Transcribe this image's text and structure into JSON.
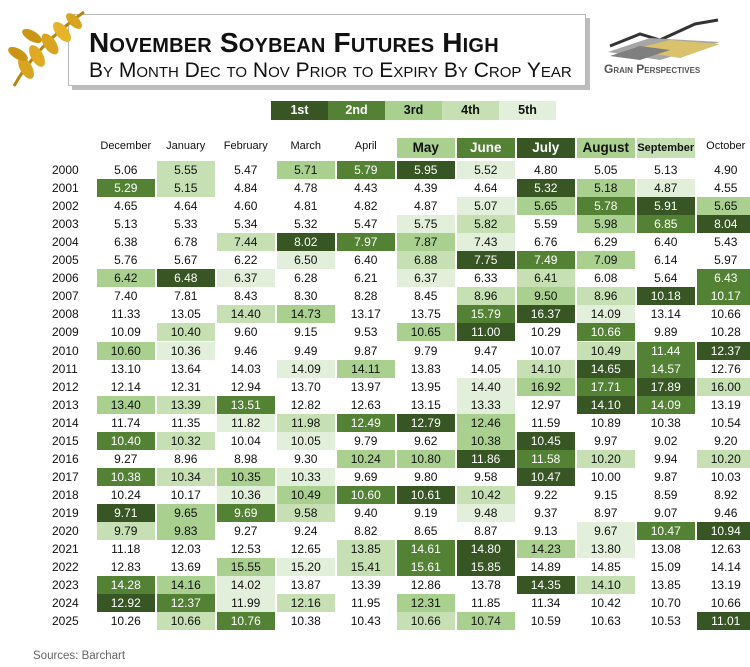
{
  "title": "November Soybean Futures High",
  "subtitle": "By Month Dec to Nov Prior to Expiry By Crop Year",
  "brand": "Grain Perspectives",
  "source": "Sources: Barchart",
  "rank_colors": {
    "1": "#375623",
    "2": "#548235",
    "3": "#a9d08e",
    "4": "#c6e0b4",
    "5": "#e2efda"
  },
  "legend": [
    {
      "label": "1st",
      "rank": 1
    },
    {
      "label": "2nd",
      "rank": 2
    },
    {
      "label": "3rd",
      "rank": 3
    },
    {
      "label": "4th",
      "rank": 4
    },
    {
      "label": "5th",
      "rank": 5
    }
  ],
  "chart_data": {
    "type": "table",
    "columns": [
      "December",
      "January",
      "February",
      "March",
      "April",
      "May",
      "June",
      "July",
      "August",
      "September",
      "October"
    ],
    "highlighted_columns": [
      {
        "column": "May",
        "rank": 3
      },
      {
        "column": "June",
        "rank": 2
      },
      {
        "column": "July",
        "rank": 1
      },
      {
        "column": "August",
        "rank": 3
      },
      {
        "column": "September",
        "rank": 4
      }
    ],
    "rows": [
      {
        "year": "2000",
        "values": [
          "5.06",
          "5.55",
          "5.47",
          "5.71",
          "5.79",
          "5.95",
          "5.52",
          "4.80",
          "5.05",
          "5.13",
          "4.90"
        ],
        "ranks": [
          0,
          4,
          0,
          3,
          2,
          1,
          5,
          0,
          0,
          0,
          0
        ]
      },
      {
        "year": "2001",
        "values": [
          "5.29",
          "5.15",
          "4.84",
          "4.78",
          "4.43",
          "4.39",
          "4.64",
          "5.32",
          "5.18",
          "4.87",
          "4.55"
        ],
        "ranks": [
          2,
          4,
          0,
          0,
          0,
          0,
          0,
          1,
          3,
          5,
          0
        ]
      },
      {
        "year": "2002",
        "values": [
          "4.65",
          "4.64",
          "4.60",
          "4.81",
          "4.82",
          "4.87",
          "5.07",
          "5.65",
          "5.78",
          "5.91",
          "5.65"
        ],
        "ranks": [
          0,
          0,
          0,
          0,
          0,
          0,
          5,
          3,
          2,
          1,
          3
        ]
      },
      {
        "year": "2003",
        "values": [
          "5.13",
          "5.33",
          "5.34",
          "5.32",
          "5.47",
          "5.75",
          "5.82",
          "5.59",
          "5.98",
          "6.85",
          "8.04"
        ],
        "ranks": [
          0,
          0,
          0,
          0,
          0,
          5,
          4,
          0,
          3,
          2,
          1
        ]
      },
      {
        "year": "2004",
        "values": [
          "6.38",
          "6.78",
          "7.44",
          "8.02",
          "7.97",
          "7.87",
          "7.43",
          "6.76",
          "6.29",
          "6.40",
          "5.43"
        ],
        "ranks": [
          0,
          0,
          4,
          1,
          2,
          3,
          5,
          0,
          0,
          0,
          0
        ]
      },
      {
        "year": "2005",
        "values": [
          "5.76",
          "5.67",
          "6.22",
          "6.50",
          "6.40",
          "6.88",
          "7.75",
          "7.49",
          "7.09",
          "6.14",
          "5.97"
        ],
        "ranks": [
          0,
          0,
          0,
          5,
          0,
          4,
          1,
          2,
          3,
          0,
          0
        ]
      },
      {
        "year": "2006",
        "values": [
          "6.42",
          "6.48",
          "6.37",
          "6.28",
          "6.21",
          "6.37",
          "6.33",
          "6.41",
          "6.08",
          "5.64",
          "6.43"
        ],
        "ranks": [
          3,
          1,
          5,
          0,
          0,
          5,
          0,
          4,
          0,
          0,
          2
        ]
      },
      {
        "year": "2007",
        "values": [
          "7.40",
          "7.81",
          "8.43",
          "8.30",
          "8.28",
          "8.45",
          "8.96",
          "9.50",
          "8.96",
          "10.18",
          "10.17"
        ],
        "ranks": [
          0,
          0,
          0,
          0,
          0,
          0,
          4,
          3,
          4,
          1,
          2
        ]
      },
      {
        "year": "2008",
        "values": [
          "11.33",
          "13.05",
          "14.40",
          "14.73",
          "13.17",
          "13.75",
          "15.79",
          "16.37",
          "14.09",
          "13.14",
          "10.66"
        ],
        "ranks": [
          0,
          0,
          4,
          3,
          0,
          0,
          2,
          1,
          5,
          0,
          0
        ]
      },
      {
        "year": "2009",
        "values": [
          "10.09",
          "10.40",
          "9.60",
          "9.15",
          "9.53",
          "10.65",
          "11.00",
          "10.29",
          "10.66",
          "9.89",
          "10.28"
        ],
        "ranks": [
          0,
          4,
          0,
          0,
          0,
          3,
          1,
          0,
          2,
          0,
          0
        ]
      },
      {
        "year": "2010",
        "values": [
          "10.60",
          "10.36",
          "9.46",
          "9.49",
          "9.87",
          "9.79",
          "9.47",
          "10.07",
          "10.49",
          "11.44",
          "12.37"
        ],
        "ranks": [
          3,
          5,
          0,
          0,
          0,
          0,
          0,
          0,
          4,
          2,
          1
        ]
      },
      {
        "year": "2011",
        "values": [
          "13.10",
          "13.64",
          "14.03",
          "14.09",
          "14.11",
          "13.83",
          "14.05",
          "14.10",
          "14.65",
          "14.57",
          "12.76"
        ],
        "ranks": [
          0,
          0,
          0,
          5,
          3,
          0,
          0,
          4,
          1,
          2,
          0
        ]
      },
      {
        "year": "2012",
        "values": [
          "12.14",
          "12.31",
          "12.94",
          "13.70",
          "13.97",
          "13.95",
          "14.40",
          "16.92",
          "17.71",
          "17.89",
          "16.00"
        ],
        "ranks": [
          0,
          0,
          0,
          0,
          0,
          0,
          5,
          3,
          2,
          1,
          4
        ]
      },
      {
        "year": "2013",
        "values": [
          "13.40",
          "13.39",
          "13.51",
          "12.82",
          "12.63",
          "13.15",
          "13.33",
          "12.97",
          "14.10",
          "14.09",
          "13.19"
        ],
        "ranks": [
          3,
          4,
          2,
          0,
          0,
          0,
          5,
          0,
          1,
          2,
          0
        ]
      },
      {
        "year": "2014",
        "values": [
          "11.74",
          "11.35",
          "11.82",
          "11.98",
          "12.49",
          "12.79",
          "12.46",
          "11.59",
          "10.89",
          "10.38",
          "10.54"
        ],
        "ranks": [
          0,
          0,
          5,
          4,
          2,
          1,
          3,
          0,
          0,
          0,
          0
        ]
      },
      {
        "year": "2015",
        "values": [
          "10.40",
          "10.32",
          "10.04",
          "10.05",
          "9.79",
          "9.62",
          "10.38",
          "10.45",
          "9.97",
          "9.02",
          "9.20"
        ],
        "ranks": [
          2,
          4,
          0,
          5,
          0,
          0,
          3,
          1,
          0,
          0,
          0
        ]
      },
      {
        "year": "2016",
        "values": [
          "9.27",
          "8.96",
          "8.98",
          "9.30",
          "10.24",
          "10.80",
          "11.86",
          "11.58",
          "10.20",
          "9.94",
          "10.20"
        ],
        "ranks": [
          0,
          0,
          0,
          0,
          3,
          3,
          1,
          2,
          4,
          0,
          4
        ]
      },
      {
        "year": "2017",
        "values": [
          "10.38",
          "10.34",
          "10.35",
          "10.33",
          "9.69",
          "9.80",
          "9.58",
          "10.47",
          "10.00",
          "9.87",
          "10.03"
        ],
        "ranks": [
          2,
          4,
          3,
          5,
          0,
          0,
          0,
          1,
          0,
          0,
          0
        ]
      },
      {
        "year": "2018",
        "values": [
          "10.24",
          "10.17",
          "10.36",
          "10.49",
          "10.60",
          "10.61",
          "10.42",
          "9.22",
          "9.15",
          "8.59",
          "8.92"
        ],
        "ranks": [
          0,
          0,
          5,
          3,
          2,
          1,
          4,
          0,
          0,
          0,
          0
        ]
      },
      {
        "year": "2019",
        "values": [
          "9.71",
          "9.65",
          "9.69",
          "9.58",
          "9.40",
          "9.19",
          "9.48",
          "9.37",
          "8.97",
          "9.07",
          "9.46"
        ],
        "ranks": [
          1,
          3,
          2,
          4,
          0,
          0,
          5,
          0,
          0,
          0,
          0
        ]
      },
      {
        "year": "2020",
        "values": [
          "9.79",
          "9.83",
          "9.27",
          "9.24",
          "8.82",
          "8.65",
          "8.87",
          "9.13",
          "9.67",
          "10.47",
          "10.94"
        ],
        "ranks": [
          4,
          3,
          0,
          0,
          0,
          0,
          0,
          0,
          5,
          2,
          1
        ]
      },
      {
        "year": "2021",
        "values": [
          "11.18",
          "12.03",
          "12.53",
          "12.65",
          "13.85",
          "14.61",
          "14.80",
          "14.23",
          "13.80",
          "13.08",
          "12.63"
        ],
        "ranks": [
          0,
          0,
          0,
          0,
          4,
          2,
          1,
          3,
          5,
          0,
          0
        ]
      },
      {
        "year": "2022",
        "values": [
          "12.83",
          "13.69",
          "15.55",
          "15.20",
          "15.41",
          "15.61",
          "15.85",
          "14.89",
          "14.85",
          "15.09",
          "14.14"
        ],
        "ranks": [
          0,
          0,
          3,
          5,
          4,
          2,
          1,
          0,
          0,
          0,
          0
        ]
      },
      {
        "year": "2023",
        "values": [
          "14.28",
          "14.16",
          "14.02",
          "13.87",
          "13.39",
          "12.86",
          "13.78",
          "14.35",
          "14.10",
          "13.85",
          "13.19"
        ],
        "ranks": [
          2,
          3,
          5,
          0,
          0,
          0,
          0,
          1,
          4,
          0,
          0
        ]
      },
      {
        "year": "2024",
        "values": [
          "12.92",
          "12.37",
          "11.99",
          "12.16",
          "11.95",
          "12.31",
          "11.85",
          "11.34",
          "10.42",
          "10.70",
          "10.66"
        ],
        "ranks": [
          1,
          2,
          5,
          4,
          0,
          3,
          0,
          0,
          0,
          0,
          0
        ]
      },
      {
        "year": "2025",
        "values": [
          "10.26",
          "10.66",
          "10.76",
          "10.38",
          "10.43",
          "10.66",
          "10.74",
          "10.59",
          "10.63",
          "10.53",
          "11.01"
        ],
        "ranks": [
          0,
          4,
          2,
          0,
          0,
          4,
          3,
          0,
          0,
          0,
          1
        ]
      }
    ]
  }
}
